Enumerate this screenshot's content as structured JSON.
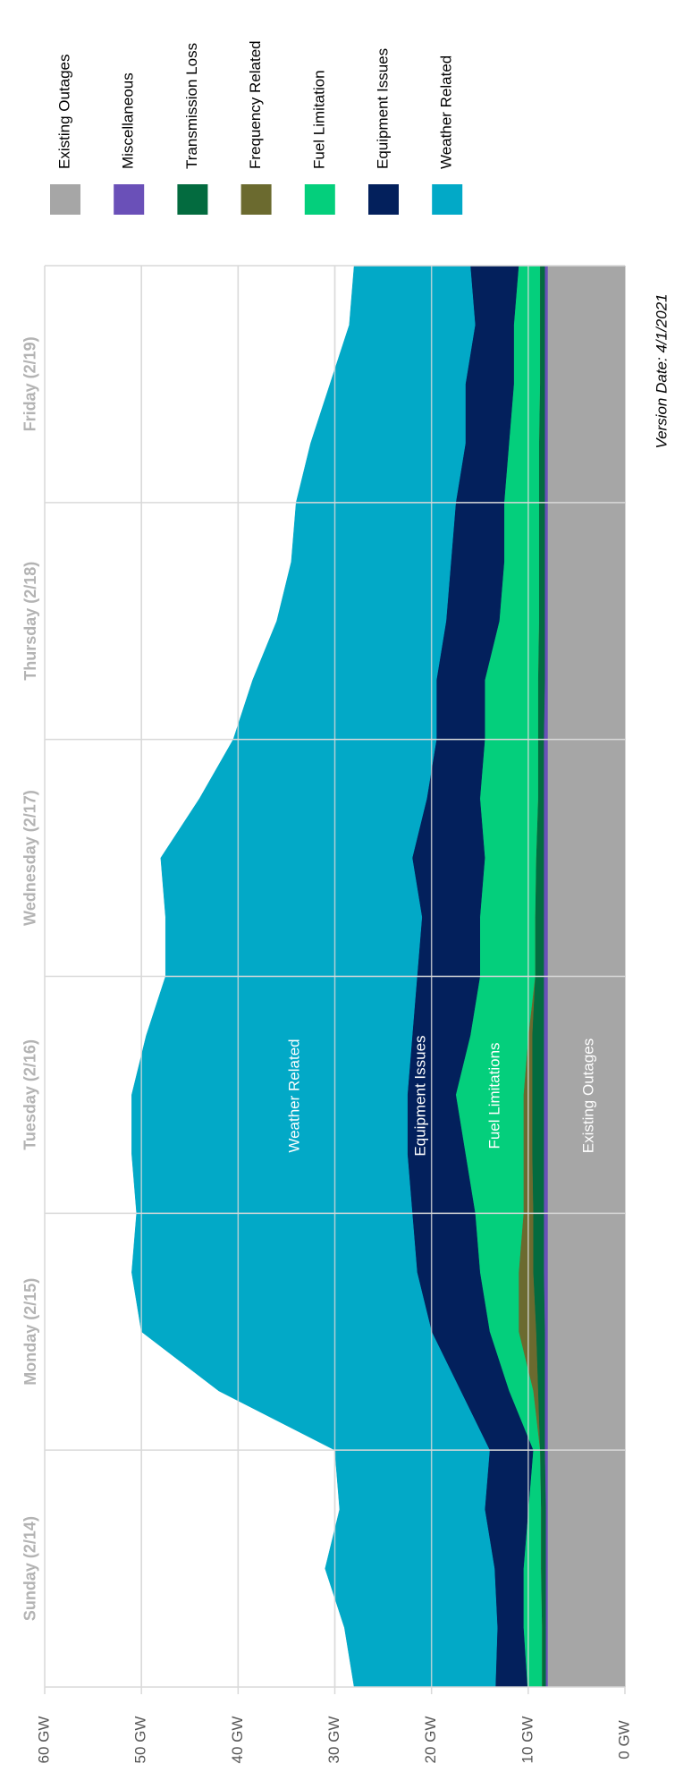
{
  "chart_data": {
    "type": "stacked-area",
    "categories": [
      null,
      null,
      "Sunday (2/14)",
      null,
      null,
      null,
      "Monday (2/15)",
      null,
      null,
      null,
      "Tuesday (2/16)",
      null,
      null,
      null,
      "Wednesday (2/17)",
      null,
      null,
      null,
      "Thursday (2/18)",
      null,
      null,
      null,
      "Friday (2/19)",
      null,
      null
    ],
    "series": [
      {
        "name": "Existing Outages",
        "color": "#a6a6a6",
        "values": [
          8.0,
          8.0,
          8.0,
          8.0,
          8.0,
          8.0,
          8.0,
          8.0,
          8.0,
          8.0,
          8.0,
          8.0,
          8.0,
          8.0,
          8.0,
          8.0,
          8.0,
          8.0,
          8.0,
          8.0,
          8.0,
          8.0,
          8.0,
          8.0,
          8.0
        ]
      },
      {
        "name": "Miscellaneous",
        "color": "#6a50b8",
        "values": [
          0.2,
          0.2,
          0.2,
          0.2,
          0.3,
          0.3,
          0.3,
          0.4,
          0.4,
          0.4,
          0.4,
          0.4,
          0.4,
          0.4,
          0.4,
          0.4,
          0.4,
          0.3,
          0.3,
          0.3,
          0.3,
          0.3,
          0.3,
          0.3,
          0.3
        ]
      },
      {
        "name": "Transmission Loss",
        "color": "#036b3f",
        "values": [
          0.4,
          0.4,
          0.5,
          0.5,
          0.5,
          0.7,
          0.9,
          1.1,
          1.1,
          1.2,
          1.2,
          1.2,
          0.9,
          0.9,
          0.8,
          0.6,
          0.6,
          0.7,
          0.6,
          0.6,
          0.6,
          0.6,
          0.5,
          0.5,
          0.5
        ]
      },
      {
        "name": "Frequency Related",
        "color": "#6b6a2f",
        "values": [
          0,
          0,
          0,
          0,
          0,
          0.5,
          1.8,
          1.5,
          1.0,
          0.9,
          0.9,
          0.4,
          0,
          0,
          0,
          0,
          0,
          0,
          0,
          0,
          0,
          0,
          0,
          0,
          0
        ]
      },
      {
        "name": "Fuel Limitation",
        "color": "#04cf7c",
        "values": [
          1.5,
          1.9,
          1.8,
          1.3,
          0.7,
          2.5,
          3.0,
          4.0,
          5.0,
          6.0,
          7.0,
          6.0,
          5.7,
          5.7,
          5.3,
          6.0,
          5.5,
          5.5,
          4.1,
          3.6,
          3.6,
          3.1,
          2.7,
          2.7,
          2.2
        ]
      },
      {
        "name": "Equipment Issues",
        "color": "#03205c",
        "values": [
          3.3,
          2.7,
          3.0,
          4.5,
          4.5,
          5.0,
          6.0,
          6.5,
          6.5,
          6.0,
          5.0,
          6.0,
          6.5,
          6.0,
          7.5,
          5.5,
          5.0,
          5.0,
          5.5,
          5.5,
          5.0,
          4.5,
          5.0,
          4.0,
          5.0
        ]
      },
      {
        "name": "Weather Related",
        "color": "#02a9c7",
        "values": [
          14.6,
          15.8,
          17.5,
          15.0,
          16.0,
          25.0,
          30.0,
          29.5,
          28.5,
          28.5,
          28.5,
          27.5,
          26.0,
          26.5,
          26.0,
          23.5,
          21.0,
          19.0,
          17.5,
          16.5,
          16.5,
          16.0,
          14.0,
          13.0,
          12.0
        ]
      }
    ],
    "ylim": [
      0,
      60
    ],
    "yticks": [
      {
        "value": 0,
        "label": "0 GW"
      },
      {
        "value": 10,
        "label": "10 GW"
      },
      {
        "value": 20,
        "label": "20 GW"
      },
      {
        "value": 30,
        "label": "30 GW"
      },
      {
        "value": 40,
        "label": "40 GW"
      },
      {
        "value": 50,
        "label": "50 GW"
      },
      {
        "value": 60,
        "label": "60 GW"
      }
    ],
    "grid": true,
    "annotations": [
      "Weather Related",
      "Equipment Issues",
      "Fuel Limitations",
      "Existing Outages"
    ],
    "version_note": "Version Date: 4/1/2021"
  }
}
